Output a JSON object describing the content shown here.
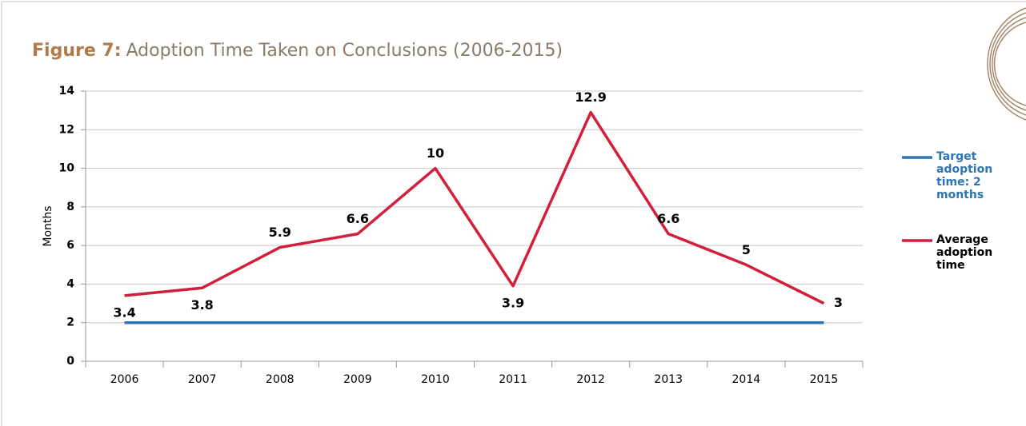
{
  "chart_data": {
    "type": "line",
    "title_label": "Figure 7:",
    "title": "Adoption Time Taken on Conclusions (2006-2015)",
    "y_label": "Months",
    "categories": [
      "2006",
      "2007",
      "2008",
      "2009",
      "2010",
      "2011",
      "2012",
      "2013",
      "2014",
      "2015"
    ],
    "series": [
      {
        "name": "Target adoption time: 2 months",
        "color": "#2e75b6",
        "values": [
          2,
          2,
          2,
          2,
          2,
          2,
          2,
          2,
          2,
          2
        ]
      },
      {
        "name": "Average adoption time",
        "color": "#d21f3c",
        "values": [
          3.4,
          3.8,
          5.9,
          6.6,
          10,
          3.9,
          12.9,
          6.6,
          5,
          3
        ],
        "show_labels": true
      }
    ],
    "ylim": [
      0,
      14
    ],
    "yticks": [
      0,
      2,
      4,
      6,
      8,
      10,
      12,
      14
    ],
    "grid": true,
    "legend": "right"
  }
}
